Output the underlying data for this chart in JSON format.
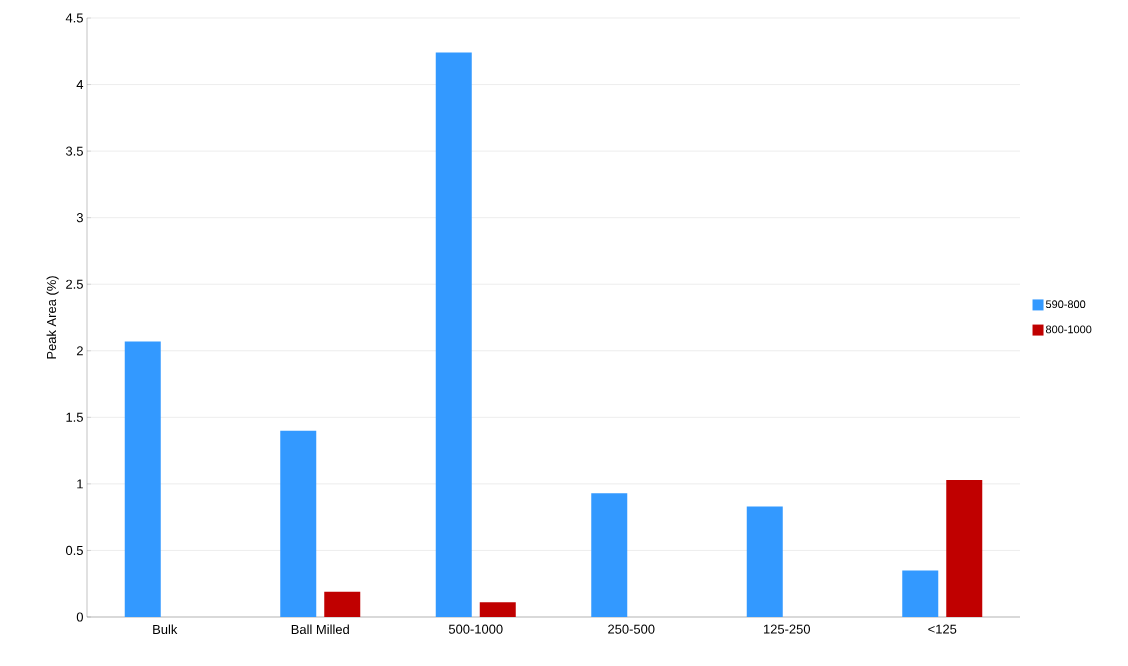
{
  "chart_data": {
    "type": "bar",
    "ylabel": "Peak Area (%)",
    "categories": [
      "Bulk",
      "Ball Milled",
      "500-1000",
      "250-500",
      "125-250",
      "<125"
    ],
    "series": [
      {
        "name": "590-800",
        "color": "#3399ff",
        "values": [
          2.07,
          1.4,
          4.24,
          0.93,
          0.83,
          0.35
        ]
      },
      {
        "name": "800-1000",
        "color": "#c00000",
        "values": [
          null,
          0.19,
          0.11,
          null,
          null,
          1.03
        ]
      }
    ],
    "ylim": [
      0,
      4.5
    ],
    "yticks": [
      0,
      0.5,
      1,
      1.5,
      2,
      2.5,
      3,
      3.5,
      4,
      4.5
    ],
    "grid": "y",
    "legend": "right"
  }
}
